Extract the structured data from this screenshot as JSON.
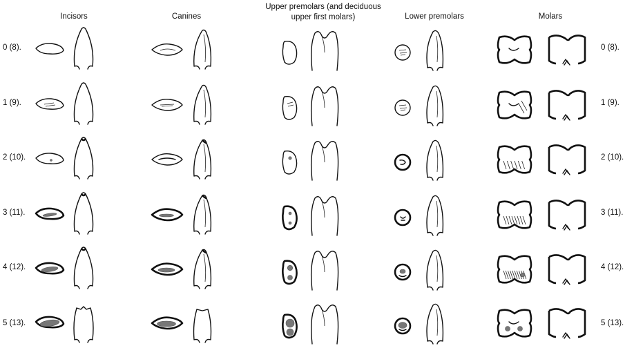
{
  "columns": [
    {
      "key": "incisors",
      "title": "Incisors"
    },
    {
      "key": "canines",
      "title": "Canines"
    },
    {
      "key": "upper_premolars",
      "title": "Upper premolars (and deciduous upper first molars)"
    },
    {
      "key": "lower_premolars",
      "title": "Lower premolars"
    },
    {
      "key": "molars",
      "title": "Molars"
    }
  ],
  "rows": [
    {
      "label": "0 (8).",
      "stage": 0
    },
    {
      "label": "1 (9).",
      "stage": 1
    },
    {
      "label": "2 (10).",
      "stage": 2
    },
    {
      "label": "3 (11).",
      "stage": 3
    },
    {
      "label": "4 (12).",
      "stage": 4
    },
    {
      "label": "5 (13).",
      "stage": 5
    }
  ]
}
